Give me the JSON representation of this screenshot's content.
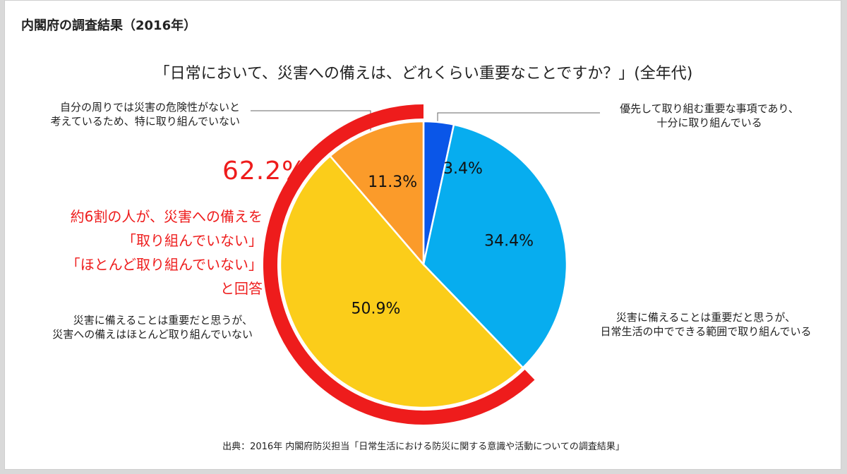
{
  "header": {
    "title": "内閣府の調査結果（2016年）"
  },
  "question": "「日常において、災害への備えは、どれくらい重要なことですか？」(全年代)",
  "colors": {
    "ring": "#ee1c1c",
    "slice_blue": "#0a56e8",
    "slice_light_blue": "#07adef",
    "slice_yellow": "#fbcd1a",
    "slice_orange": "#fb9b2a"
  },
  "labels": {
    "top_right": "優先して取り組む重要な事項であり、\n十分に取り組んでいる",
    "bottom_right": "災害に備えることは重要だと思うが、\n日常生活の中でできる範囲で取り組んでいる",
    "bottom_left": "災害に備えることは重要だと思うが、\n災害への備えはほとんど取り組んでいない",
    "top_left": "自分の周りでは災害の危険性がないと\n考えているため、特に取り組んでいない"
  },
  "highlight": {
    "percent": "62.2%",
    "line1": "約6割の人が、災害への備えを",
    "line2": "「取り組んでいない」",
    "line3": "「ほとんど取り組んでいない」",
    "line4": "と回答"
  },
  "source": "出典：2016年 内閣府防災担当「日常生活における防災に関する意識や活動についての調査結果」",
  "chart_data": {
    "type": "pie",
    "title": "「日常において、災害への備えは、どれくらい重要なことですか？」(全年代)",
    "slices": [
      {
        "label": "優先して取り組む重要な事項であり、十分に取り組んでいる",
        "value": 3.4,
        "display": "3.4%",
        "color": "#0a56e8"
      },
      {
        "label": "災害に備えることは重要だと思うが、日常生活の中でできる範囲で取り組んでいる",
        "value": 34.4,
        "display": "34.4%",
        "color": "#07adef"
      },
      {
        "label": "災害に備えることは重要だと思うが、災害への備えはほとんど取り組んでいない",
        "value": 50.9,
        "display": "50.9%",
        "color": "#fbcd1a"
      },
      {
        "label": "自分の周りでは災害の危険性がないと考えているため、特に取り組んでいない",
        "value": 11.3,
        "display": "11.3%",
        "color": "#fb9b2a"
      }
    ],
    "highlight_ring": {
      "slices": [
        2,
        3
      ],
      "value": 62.2,
      "color": "#ee1c1c"
    },
    "start_angle": "12 o'clock, clockwise"
  }
}
